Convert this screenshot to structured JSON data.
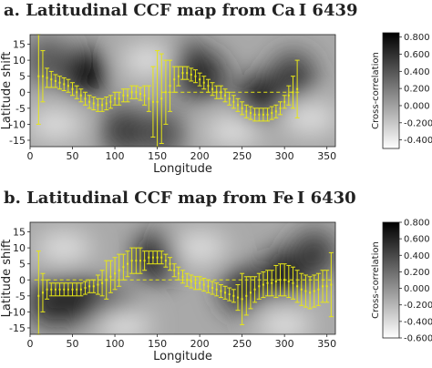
{
  "chart_data": [
    {
      "type": "heatmap",
      "title": "a. Latitudinal CCF map from Ca I 6439",
      "xlabel": "Longitude",
      "ylabel": "Latitude shift",
      "colorbar_label": "Cross-correlation",
      "xlim": [
        0,
        360
      ],
      "ylim": [
        -17,
        18
      ],
      "x_ticks": [
        0,
        50,
        100,
        150,
        200,
        250,
        300,
        350
      ],
      "y_ticks": [
        -15,
        -10,
        -5,
        0,
        5,
        10,
        15
      ],
      "colorbar_range": [
        -0.5,
        0.85
      ],
      "colorbar_ticks": [
        "0.800",
        "0.600",
        "0.400",
        "0.200",
        "0.000",
        "-0.200",
        "-0.400"
      ],
      "colorbar_tick_values": [
        0.8,
        0.6,
        0.4,
        0.2,
        0.0,
        -0.2,
        -0.4
      ],
      "dark_regions": [
        {
          "x": 65,
          "y": 6,
          "value": 0.85
        },
        {
          "x": 110,
          "y": -12,
          "value": 0.55
        },
        {
          "x": 185,
          "y": 8,
          "value": 0.7
        },
        {
          "x": 205,
          "y": 5,
          "value": 0.65
        },
        {
          "x": 270,
          "y": -2,
          "value": 0.75
        },
        {
          "x": 310,
          "y": 5,
          "value": 0.55
        },
        {
          "x": 20,
          "y": 10,
          "value": 0.4
        },
        {
          "x": 155,
          "y": -13,
          "value": 0.45
        }
      ],
      "reference_line": {
        "y": 0,
        "x_range": [
          155,
          320
        ],
        "style": "dashed"
      },
      "series": [
        {
          "style": "errorbar",
          "color": "#e6e617",
          "x": [
            10,
            15,
            20,
            25,
            30,
            35,
            40,
            45,
            50,
            55,
            60,
            65,
            70,
            75,
            80,
            85,
            90,
            95,
            100,
            105,
            110,
            115,
            120,
            125,
            130,
            135,
            140,
            145,
            150,
            155,
            160,
            165,
            170,
            175,
            180,
            185,
            190,
            195,
            200,
            205,
            210,
            215,
            220,
            225,
            230,
            235,
            240,
            245,
            250,
            255,
            260,
            265,
            270,
            275,
            280,
            285,
            290,
            295,
            300,
            305,
            310,
            315
          ],
          "y": [
            5,
            5,
            4.5,
            4,
            3.5,
            3,
            2.5,
            2,
            1,
            0,
            -1,
            -2,
            -3,
            -3.5,
            -4,
            -4,
            -3.5,
            -3,
            -2,
            -2,
            -1,
            -1,
            0,
            0,
            -0.5,
            -1,
            -2,
            -3,
            -3,
            -2,
            0,
            2,
            4,
            5,
            6,
            6,
            5.5,
            5,
            4,
            3,
            2,
            1,
            0,
            0,
            -1,
            -2,
            -3,
            -4,
            -5,
            -6,
            -6.5,
            -7,
            -7,
            -7,
            -7,
            -6.5,
            -6,
            -5,
            -3,
            -1,
            0,
            1
          ],
          "err": [
            15,
            8,
            3,
            2.5,
            2,
            2,
            2,
            2,
            2,
            2,
            2,
            2,
            2,
            2,
            2,
            2,
            2,
            2,
            2,
            2,
            2,
            2,
            2,
            2,
            2,
            3,
            4,
            11,
            16,
            14,
            10,
            8,
            4,
            3,
            2,
            2,
            2,
            2,
            2,
            2,
            2,
            2,
            2,
            2,
            2,
            2,
            2,
            2,
            2,
            2,
            2,
            2,
            2,
            2,
            2,
            2,
            2,
            2,
            2,
            3,
            5,
            9
          ]
        }
      ]
    },
    {
      "type": "heatmap",
      "title": "b. Latitudinal CCF map from Fe I 6430",
      "xlabel": "Longitude",
      "ylabel": "Latitude shift",
      "colorbar_label": "Cross-correlation",
      "xlim": [
        0,
        360
      ],
      "ylim": [
        -17,
        18
      ],
      "x_ticks": [
        0,
        50,
        100,
        150,
        200,
        250,
        300,
        350
      ],
      "y_ticks": [
        -15,
        -10,
        -5,
        0,
        5,
        10,
        15
      ],
      "colorbar_range": [
        -0.6,
        0.8
      ],
      "colorbar_ticks": [
        "0.800",
        "0.600",
        "0.400",
        "0.200",
        "0.000",
        "-0.200",
        "-0.400",
        "-0.600"
      ],
      "colorbar_tick_values": [
        0.8,
        0.6,
        0.4,
        0.2,
        0.0,
        -0.2,
        -0.4,
        -0.6
      ],
      "dark_regions": [
        {
          "x": 25,
          "y": -7,
          "value": 0.6
        },
        {
          "x": 60,
          "y": -6,
          "value": 0.6
        },
        {
          "x": 100,
          "y": -10,
          "value": 0.45
        },
        {
          "x": 150,
          "y": 7,
          "value": 0.75
        },
        {
          "x": 250,
          "y": -3,
          "value": 0.55
        },
        {
          "x": 300,
          "y": 2,
          "value": 0.7
        },
        {
          "x": 335,
          "y": 8,
          "value": 0.5
        }
      ],
      "reference_line": {
        "y": 0,
        "x_range": [
          5,
          355
        ],
        "style": "dashed"
      },
      "series": [
        {
          "style": "errorbar",
          "color": "#e6e617",
          "x": [
            10,
            15,
            20,
            25,
            30,
            35,
            40,
            45,
            50,
            55,
            60,
            65,
            70,
            75,
            80,
            85,
            90,
            95,
            100,
            105,
            110,
            115,
            120,
            125,
            130,
            135,
            140,
            145,
            150,
            155,
            160,
            165,
            170,
            175,
            180,
            185,
            190,
            195,
            200,
            205,
            210,
            215,
            220,
            225,
            230,
            235,
            240,
            245,
            250,
            255,
            260,
            265,
            270,
            275,
            280,
            285,
            290,
            295,
            300,
            305,
            310,
            315,
            320,
            325,
            330,
            335,
            340,
            345,
            350,
            355
          ],
          "y": [
            -5,
            -4,
            -3,
            -3,
            -3,
            -3,
            -3,
            -3,
            -3,
            -3,
            -3,
            -2.5,
            -2,
            -2,
            -1.5,
            -1,
            0,
            1,
            2,
            3,
            4,
            5,
            6,
            6,
            6,
            6,
            7,
            7,
            7,
            7,
            6,
            5,
            3,
            2,
            1,
            0,
            -0.5,
            -1,
            -1,
            -1.5,
            -2,
            -2.5,
            -3,
            -3.5,
            -4,
            -4.5,
            -5,
            -5.5,
            -6,
            -5,
            -4,
            -3,
            -2,
            -1.5,
            -1,
            -1,
            -0.5,
            0,
            0,
            -0.5,
            -1,
            -2,
            -3,
            -3.5,
            -4,
            -3.5,
            -3,
            -2,
            -2,
            -1.5
          ],
          "err": [
            14,
            6,
            3,
            2,
            2,
            2,
            2,
            2,
            2,
            2,
            2,
            2,
            2,
            2,
            3,
            4,
            6,
            5,
            5,
            5,
            4,
            4,
            4,
            4,
            4,
            3,
            2,
            2,
            2,
            2,
            2,
            2,
            2,
            2,
            2,
            2,
            2,
            2,
            2,
            2,
            2,
            2,
            2,
            2,
            2,
            2,
            2,
            4,
            8,
            6,
            5,
            4,
            4,
            4,
            4,
            4,
            5,
            5,
            5,
            5,
            5,
            5,
            5,
            5,
            5,
            5,
            5,
            5,
            5,
            10
          ]
        }
      ]
    }
  ]
}
